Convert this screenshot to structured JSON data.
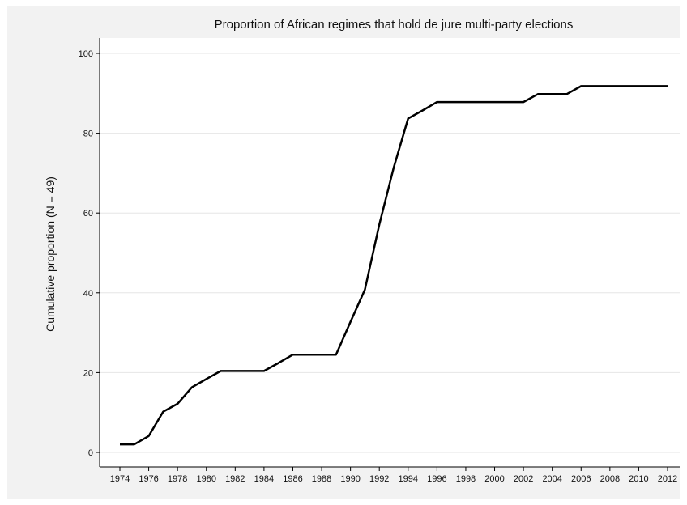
{
  "chart_data": {
    "type": "line",
    "title": "Proportion of African regimes that hold de jure multi-party elections",
    "xlabel": "",
    "ylabel": "Cumulative proportion (N = 49)",
    "xlim": [
      1974,
      2012
    ],
    "ylim": [
      0,
      100
    ],
    "x_ticks": [
      1974,
      1976,
      1978,
      1980,
      1982,
      1984,
      1986,
      1988,
      1990,
      1992,
      1994,
      1996,
      1998,
      2000,
      2002,
      2004,
      2006,
      2008,
      2010,
      2012
    ],
    "y_ticks": [
      0,
      20,
      40,
      60,
      80,
      100
    ],
    "grid": true,
    "line_color": "#000000",
    "series": [
      {
        "x": [
          1974,
          1975,
          1976,
          1977,
          1978,
          1979,
          1980,
          1981,
          1982,
          1983,
          1984,
          1985,
          1986,
          1987,
          1988,
          1989,
          1990,
          1991,
          1992,
          1993,
          1994,
          1995,
          1996,
          1997,
          1998,
          1999,
          2000,
          2001,
          2002,
          2003,
          2004,
          2005,
          2006,
          2007,
          2008,
          2009,
          2010,
          2011,
          2012
        ],
        "values": [
          2.0,
          2.0,
          4.1,
          10.2,
          12.2,
          16.3,
          18.4,
          20.4,
          20.4,
          20.4,
          20.4,
          22.4,
          24.5,
          24.5,
          24.5,
          24.5,
          32.7,
          40.8,
          57.1,
          71.4,
          83.7,
          85.7,
          87.8,
          87.8,
          87.8,
          87.8,
          87.8,
          87.8,
          87.8,
          89.8,
          89.8,
          89.8,
          91.8,
          91.8,
          91.8,
          91.8,
          91.8,
          91.8,
          91.8
        ]
      }
    ]
  }
}
